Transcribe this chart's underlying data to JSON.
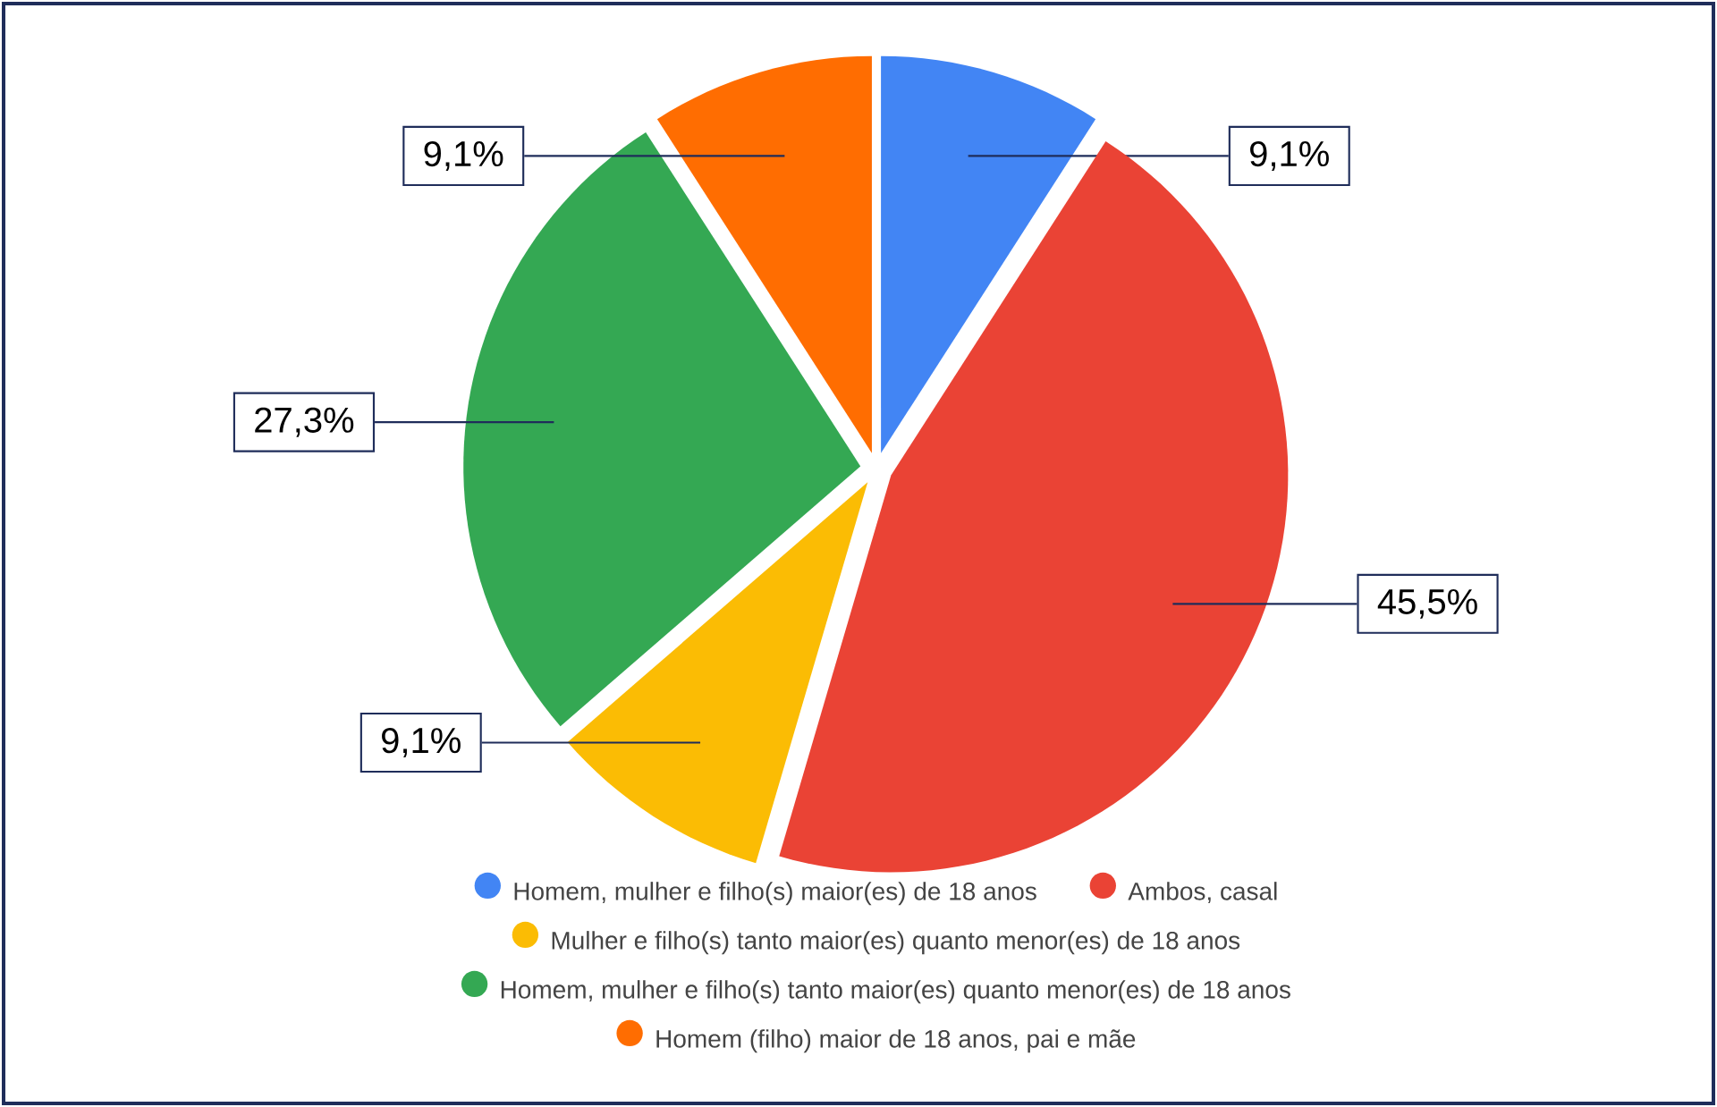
{
  "chart_data": {
    "type": "pie",
    "categories": [
      "Homem, mulher e filho(s) maior(es) de 18 anos",
      "Ambos, casal",
      "Mulher e filho(s) tanto maior(es) quanto menor(es) de 18 anos",
      "Homem, mulher e filho(s) tanto maior(es) quanto menor(es) de 18 anos",
      "Homem (filho) maior de 18 anos, pai e mãe"
    ],
    "values": [
      9.1,
      45.5,
      9.1,
      27.3,
      9.1
    ],
    "colors": [
      "#4285f4",
      "#ea4335",
      "#fbbc04",
      "#34a853",
      "#ff6d01"
    ],
    "value_labels": [
      "9,1%",
      "45,5%",
      "9,1%",
      "27,3%",
      "9,1%"
    ],
    "legend": "bottom"
  }
}
